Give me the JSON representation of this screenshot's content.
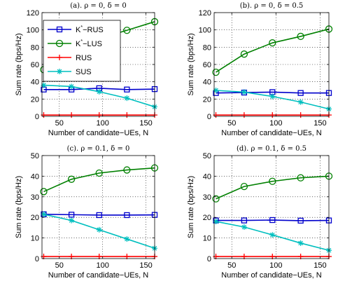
{
  "chart_data": [
    {
      "type": "line",
      "title": "(a).  ρ = 0, δ = 0",
      "xlabel": "Number of candidate−UEs, N",
      "ylabel": "Sum rate (bps/Hz)",
      "xlim": [
        30,
        160
      ],
      "ylim": [
        0,
        120
      ],
      "xticks": [
        50,
        100,
        150
      ],
      "yticks": [
        0,
        20,
        40,
        60,
        80,
        100,
        120
      ],
      "grid": true,
      "legend_position": "top-left",
      "x": [
        32,
        64,
        96,
        128,
        160
      ],
      "series": [
        {
          "name": "K*−RUS",
          "values": [
            31,
            31,
            32.5,
            31,
            31.5
          ]
        },
        {
          "name": "K*−LUS",
          "values": [
            54,
            76,
            90,
            99.5,
            109.5
          ]
        },
        {
          "name": "RUS",
          "values": [
            1.5,
            1.5,
            1.5,
            1.5,
            1.5
          ]
        },
        {
          "name": "SUS",
          "values": [
            36,
            34.5,
            28.5,
            21,
            11
          ]
        }
      ]
    },
    {
      "type": "line",
      "title": "(b).  ρ = 0, δ = 0.5",
      "xlabel": "Number of candidate−UEs, N",
      "ylabel": "Sum rate (bps/Hz)",
      "xlim": [
        30,
        160
      ],
      "ylim": [
        0,
        120
      ],
      "xticks": [
        50,
        100,
        150
      ],
      "yticks": [
        0,
        20,
        40,
        60,
        80,
        100,
        120
      ],
      "grid": true,
      "x": [
        32,
        64,
        96,
        128,
        160
      ],
      "series": [
        {
          "name": "K*−RUS",
          "values": [
            27,
            27.5,
            28,
            27,
            27
          ]
        },
        {
          "name": "K*−LUS",
          "values": [
            51,
            72,
            85,
            92.5,
            101
          ]
        },
        {
          "name": "RUS",
          "values": [
            1.5,
            1.5,
            1.5,
            1.5,
            1.5
          ]
        },
        {
          "name": "SUS",
          "values": [
            30,
            28,
            23,
            16.5,
            8.5
          ]
        }
      ]
    },
    {
      "type": "line",
      "title": "(c).  ρ = 0.1, δ = 0",
      "xlabel": "Number of candidate−UEs, N",
      "ylabel": "Sum rate (bps/Hz)",
      "xlim": [
        30,
        160
      ],
      "ylim": [
        0,
        50
      ],
      "xticks": [
        50,
        100,
        150
      ],
      "yticks": [
        0,
        10,
        20,
        30,
        40,
        50
      ],
      "grid": true,
      "x": [
        32,
        64,
        96,
        128,
        160
      ],
      "series": [
        {
          "name": "K*−RUS",
          "values": [
            21.5,
            21.3,
            21.1,
            21.1,
            21.2
          ]
        },
        {
          "name": "K*−LUS",
          "values": [
            32.5,
            38.5,
            41.5,
            43,
            44
          ]
        },
        {
          "name": "RUS",
          "values": [
            1,
            1,
            1,
            1,
            1
          ]
        },
        {
          "name": "SUS",
          "values": [
            21.5,
            18.5,
            14,
            9.5,
            5
          ]
        }
      ]
    },
    {
      "type": "line",
      "title": "(d).  ρ = 0.1, δ = 0.5",
      "xlabel": "Number of candidate−UEs, N",
      "ylabel": "Sum rate (bps/Hz)",
      "xlim": [
        30,
        160
      ],
      "ylim": [
        0,
        50
      ],
      "xticks": [
        50,
        100,
        150
      ],
      "yticks": [
        0,
        10,
        20,
        30,
        40,
        50
      ],
      "grid": true,
      "x": [
        32,
        64,
        96,
        128,
        160
      ],
      "series": [
        {
          "name": "K*−RUS",
          "values": [
            18.5,
            18.5,
            18.7,
            18.4,
            18.5
          ]
        },
        {
          "name": "K*−LUS",
          "values": [
            29,
            35,
            37.5,
            39.2,
            40
          ]
        },
        {
          "name": "RUS",
          "values": [
            1,
            1,
            1,
            1,
            1
          ]
        },
        {
          "name": "SUS",
          "values": [
            18,
            15.3,
            11.5,
            7.5,
            4
          ]
        }
      ]
    }
  ],
  "legend": [
    {
      "label_main": "K",
      "label_sup": "*",
      "label_rest": "−RUS"
    },
    {
      "label_main": "K",
      "label_sup": "*",
      "label_rest": "−LUS"
    },
    {
      "label_main": "RUS",
      "label_sup": "",
      "label_rest": ""
    },
    {
      "label_main": "SUS",
      "label_sup": "",
      "label_rest": ""
    }
  ],
  "styles": {
    "series_colors": [
      "#0000cc",
      "#008000",
      "#ff0000",
      "#00bfbf"
    ],
    "series_markers": [
      "square",
      "circle",
      "plus",
      "asterisk"
    ]
  }
}
